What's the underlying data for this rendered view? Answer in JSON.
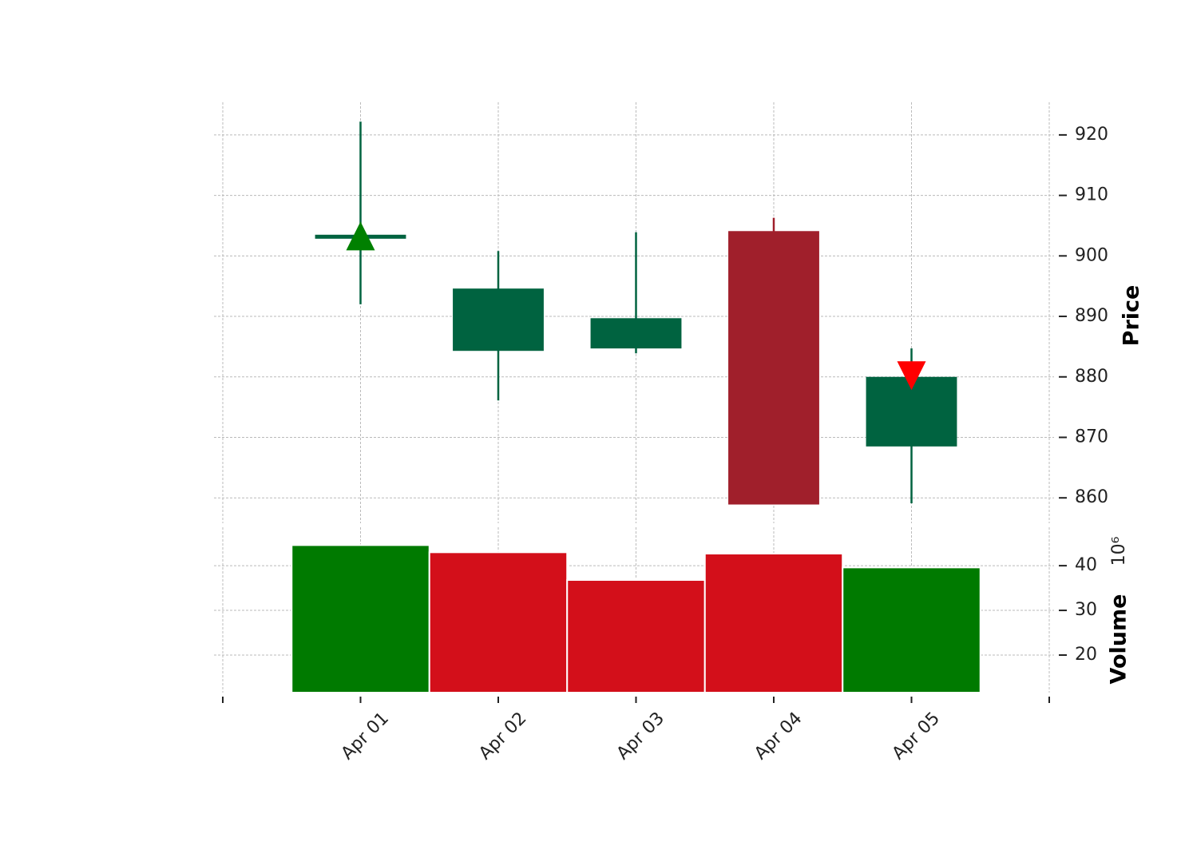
{
  "chart_data": {
    "type": "candlestick",
    "categories": [
      "Apr 01",
      "Apr 02",
      "Apr 03",
      "Apr 04",
      "Apr 05"
    ],
    "open": [
      903.2,
      884.3,
      884.7,
      904.1,
      868.5
    ],
    "high": [
      922.2,
      900.8,
      903.9,
      906.3,
      884.7
    ],
    "low": [
      892.0,
      876.1,
      883.9,
      858.9,
      859.1
    ],
    "close": [
      903.5,
      894.6,
      889.7,
      858.9,
      880.0
    ],
    "up_color": "#006340",
    "down_color": "#a01f2b",
    "xlim": [
      -1,
      5
    ],
    "ylim": [
      855.8,
      925.4
    ],
    "yticks": [
      860,
      870,
      880,
      890,
      900,
      910,
      920
    ],
    "ylabel": "Price",
    "grid": true,
    "markers": [
      {
        "symbol": "triangle-up",
        "color": "#008000",
        "values": [
          903.3,
          null,
          null,
          null,
          null
        ]
      },
      {
        "symbol": "triangle-down",
        "color": "#ff0000",
        "values": [
          null,
          null,
          null,
          null,
          880.2
        ]
      }
    ],
    "volume": {
      "values": [
        44.6,
        43.0,
        36.8,
        42.7,
        39.6
      ],
      "colors": [
        "#007a00",
        "#d30f1a",
        "#d30f1a",
        "#d30f1a",
        "#007a00"
      ],
      "ylim": [
        11.6,
        48.6
      ],
      "yticks": [
        20,
        30,
        40
      ],
      "ylabel": "Volume",
      "offset_label": "10⁶"
    }
  }
}
